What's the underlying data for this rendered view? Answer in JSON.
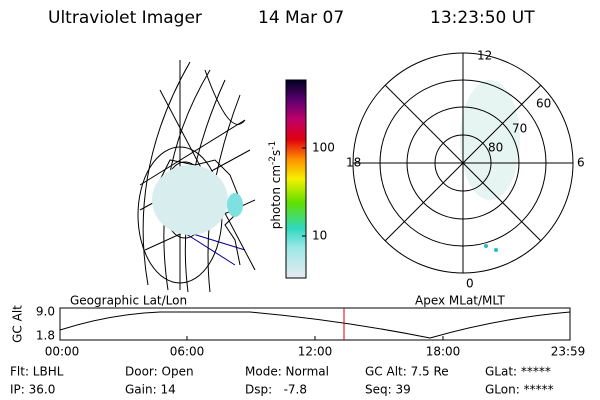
{
  "header": {
    "title": "Ultraviolet Imager",
    "date": "14 Mar 07",
    "time": "13:23:50 UT"
  },
  "colorbar": {
    "unit": {
      "base": "photon cm",
      "exp1": "-2",
      "mid": "s",
      "exp2": "-1"
    },
    "ticks": [
      "100",
      "10"
    ]
  },
  "polar": {
    "mlt_labels": [
      "12",
      "18",
      "6",
      "0"
    ],
    "lat_labels": [
      "60",
      "70",
      "80"
    ]
  },
  "orbit": {
    "left_label": "Geographic Lat/Lon",
    "right_label": "Apex MLat/MLT",
    "axis_label": "GC Alt",
    "y_labels": [
      "9.0",
      "1.8"
    ],
    "time_labels": [
      "00:00",
      "06:00",
      "12:00",
      "18:00",
      "23:59"
    ]
  },
  "footer": {
    "rows": [
      [
        "Flt: LBHL",
        "Door: Open",
        "Mode: Normal",
        "GC Alt: 7.5 Re",
        "GLat: *****"
      ],
      [
        "IP: 36.0",
        "Gain: 14",
        "Dsp:   -7.8",
        "Seq: 39",
        "GLon: *****"
      ]
    ]
  }
}
